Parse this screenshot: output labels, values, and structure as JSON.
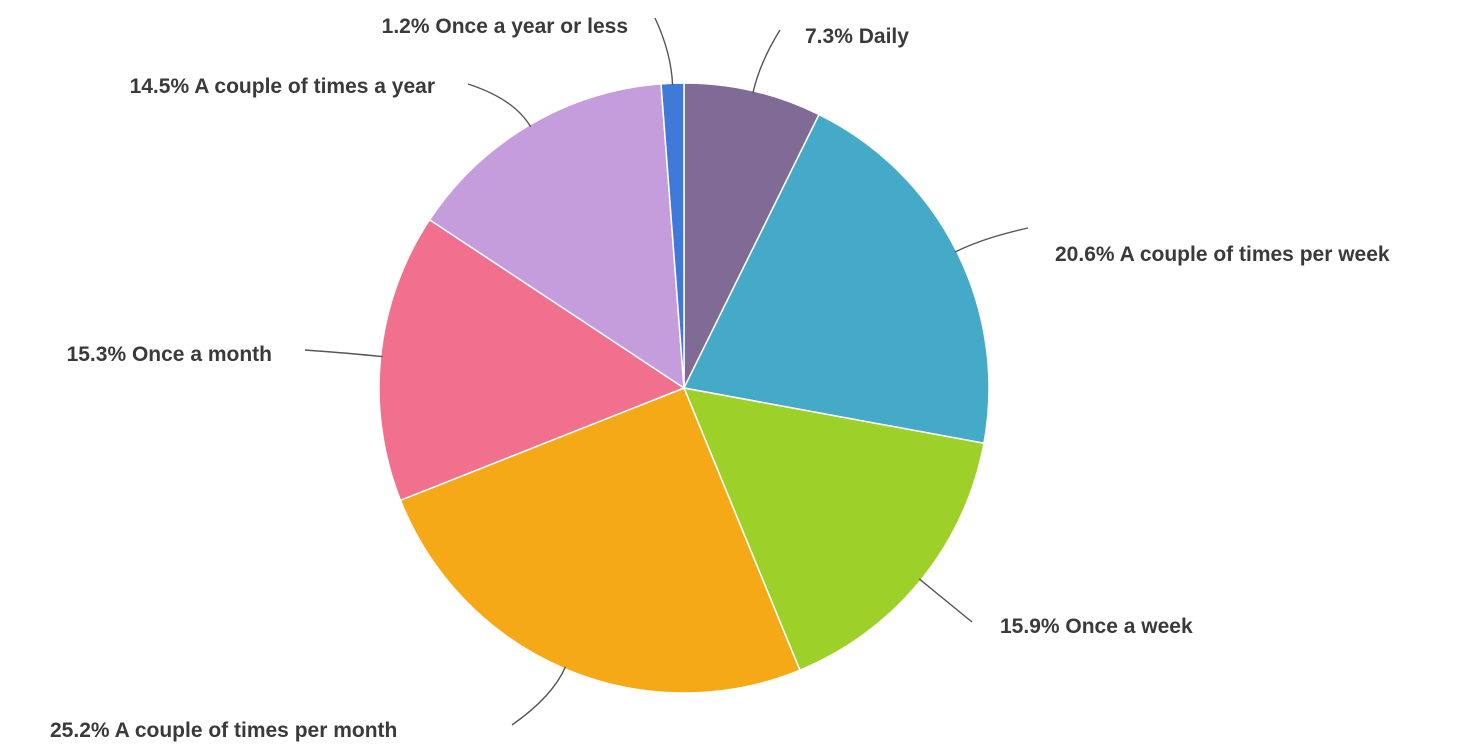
{
  "chart_data": {
    "type": "pie",
    "categories": [
      "Daily",
      "A couple of times per week",
      "Once a week",
      "A couple of times per month",
      "Once a month",
      "A couple of times a year",
      "Once a year or less"
    ],
    "values": [
      7.3,
      20.6,
      15.9,
      25.2,
      15.3,
      14.5,
      1.2
    ],
    "value_labels": [
      "7.3%",
      "20.6%",
      "15.9%",
      "25.2%",
      "15.3%",
      "14.5%",
      "1.2%"
    ],
    "colors": [
      "#806a96",
      "#45a9c8",
      "#9ed02a",
      "#f5a916",
      "#f0708e",
      "#c59cdc",
      "#3f7ad8"
    ]
  }
}
